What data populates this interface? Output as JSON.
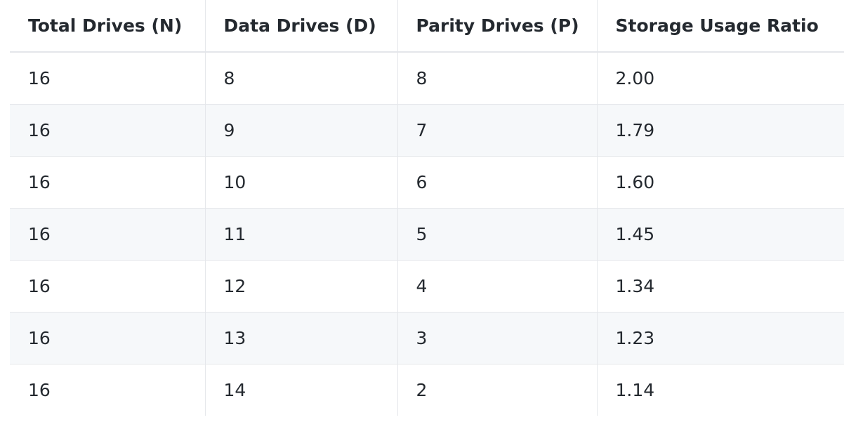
{
  "table": {
    "headers": [
      "Total Drives (N)",
      "Data Drives (D)",
      "Parity Drives (P)",
      "Storage Usage Ratio"
    ],
    "rows": [
      [
        "16",
        "8",
        "8",
        "2.00"
      ],
      [
        "16",
        "9",
        "7",
        "1.79"
      ],
      [
        "16",
        "10",
        "6",
        "1.60"
      ],
      [
        "16",
        "11",
        "5",
        "1.45"
      ],
      [
        "16",
        "12",
        "4",
        "1.34"
      ],
      [
        "16",
        "13",
        "3",
        "1.23"
      ],
      [
        "16",
        "14",
        "2",
        "1.14"
      ]
    ]
  },
  "colors": {
    "text": "#24292f",
    "stripe": "#f6f8fa",
    "border": "#e4e6ea"
  }
}
